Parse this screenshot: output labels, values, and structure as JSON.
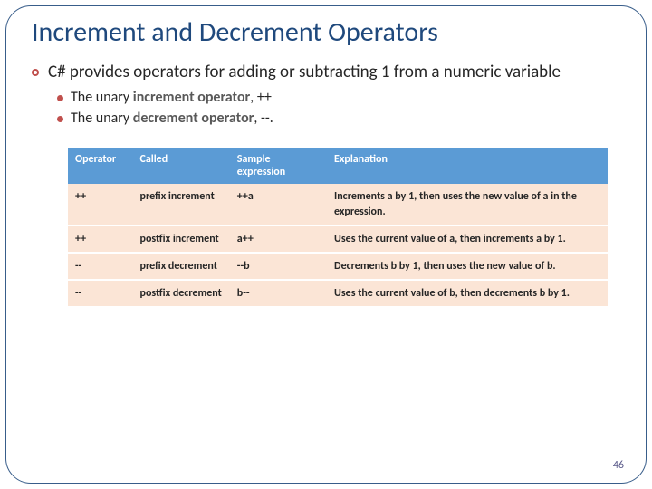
{
  "title": "Increment and Decrement Operators",
  "bullets": {
    "main": "C# provides operators for adding or subtracting 1 from a numeric variable",
    "sub1_pre": "The unary ",
    "sub1_kw": "increment operator",
    "sub1_post": ", ++",
    "sub2_pre": "The unary ",
    "sub2_kw": "decrement operator",
    "sub2_post": ", --."
  },
  "table": {
    "header_bg": "#5b9bd5",
    "header_fg": "#ffffff",
    "row_bg": "#fbe5d6",
    "columns": [
      "Operator",
      "Called",
      "Sample expression",
      "Explanation"
    ],
    "rows": [
      {
        "op": "++",
        "called": "prefix increment",
        "sample": "++a",
        "expl": "Increments a by 1, then uses the new value of a in the expression."
      },
      {
        "op": "++",
        "called": "postfix increment",
        "sample": "a++",
        "expl": "Uses the current value of a, then increments a by 1."
      },
      {
        "op": "--",
        "called": "prefix decrement",
        "sample": "--b",
        "expl": "Decrements b by 1, then uses the new value of b."
      },
      {
        "op": "--",
        "called": "postfix decrement",
        "sample": "b--",
        "expl": "Uses the current value of b, then decrements b by 1."
      }
    ]
  },
  "page_number": "46"
}
